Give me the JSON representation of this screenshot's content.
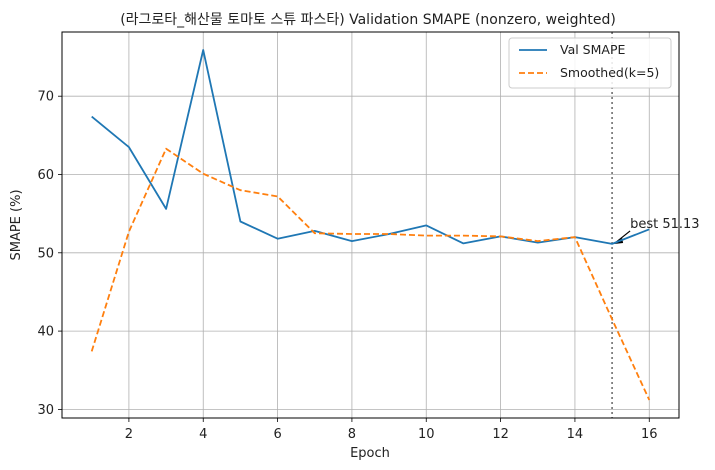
{
  "chart_data": {
    "type": "line",
    "title": "(라그로타_해산물 토마토 스튜 파스타) Validation SMAPE (nonzero, weighted)",
    "xlabel": "Epoch",
    "ylabel": "SMAPE (%)",
    "x": [
      1,
      2,
      3,
      4,
      5,
      6,
      7,
      8,
      9,
      10,
      11,
      12,
      13,
      14,
      15,
      16
    ],
    "xlim": [
      0.2,
      16.8
    ],
    "ylim": [
      28.9,
      78.2
    ],
    "xticks": [
      2,
      4,
      6,
      8,
      10,
      12,
      14,
      16
    ],
    "yticks": [
      30,
      40,
      50,
      60,
      70
    ],
    "grid": true,
    "legend_position": "top-right",
    "series": [
      {
        "name": "Val SMAPE",
        "color": "#1f77b4",
        "style": "solid",
        "values": [
          67.4,
          63.5,
          55.6,
          75.9,
          54.0,
          51.8,
          52.8,
          51.5,
          52.4,
          53.5,
          51.2,
          52.1,
          51.3,
          52.0,
          51.13,
          53.0
        ]
      },
      {
        "name": "Smoothed(k=5)",
        "color": "#ff7f0e",
        "style": "dashed",
        "values": [
          37.4,
          52.7,
          63.3,
          60.1,
          58.0,
          57.2,
          52.5,
          52.4,
          52.4,
          52.2,
          52.2,
          52.1,
          51.5,
          52.0,
          41.5,
          31.2
        ]
      }
    ],
    "best_marker": {
      "x": 15,
      "y": 51.13,
      "label": "best 51.13",
      "line_color": "#808080"
    }
  }
}
